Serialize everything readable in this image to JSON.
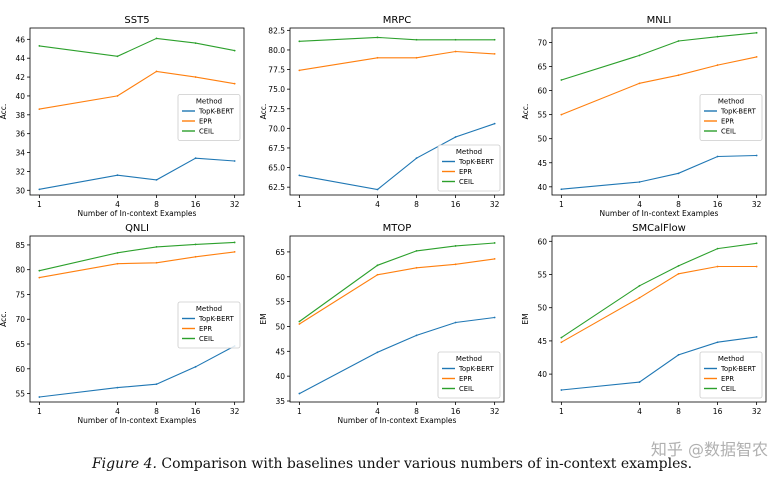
{
  "caption": {
    "label": "Figure 4.",
    "text": "Comparison with baselines under various numbers of in-context examples."
  },
  "watermark": "知乎 @数据智农",
  "colors": {
    "topk": "#1f77b4",
    "epr": "#ff7f0e",
    "ceil": "#2ca02c"
  },
  "chart_data": [
    {
      "type": "line",
      "title": "SST5",
      "xlabel": "Number of In-context Examples",
      "ylabel": "Acc.",
      "x": [
        1,
        4,
        8,
        16,
        32
      ],
      "x_scale": "log2",
      "ylim": [
        29.5,
        47.2
      ],
      "yticks": [
        30,
        32,
        34,
        36,
        38,
        40,
        42,
        44,
        46
      ],
      "legend": {
        "title": "Method",
        "position": "center-right",
        "entries": [
          "TopK-BERT",
          "EPR",
          "CEIL"
        ]
      },
      "series": [
        {
          "name": "TopK-BERT",
          "values": [
            30.1,
            31.6,
            31.1,
            33.4,
            33.1
          ]
        },
        {
          "name": "EPR",
          "values": [
            38.6,
            40.0,
            42.6,
            42.0,
            41.3
          ]
        },
        {
          "name": "CEIL",
          "values": [
            45.3,
            44.2,
            46.1,
            45.6,
            44.8
          ]
        }
      ]
    },
    {
      "type": "line",
      "title": "MRPC",
      "xlabel": "",
      "ylabel": "Acc.",
      "x": [
        1,
        4,
        8,
        16,
        32
      ],
      "x_scale": "log2",
      "ylim": [
        61.5,
        82.8
      ],
      "yticks": [
        62.5,
        65.0,
        67.5,
        70.0,
        72.5,
        75.0,
        77.5,
        80.0,
        82.5
      ],
      "legend": {
        "title": "Method",
        "position": "lower-right",
        "entries": [
          "TopK-BERT",
          "EPR",
          "CEIL"
        ]
      },
      "series": [
        {
          "name": "TopK-BERT",
          "values": [
            64.0,
            62.2,
            66.2,
            68.9,
            70.6
          ]
        },
        {
          "name": "EPR",
          "values": [
            77.4,
            79.0,
            79.0,
            79.8,
            79.5
          ]
        },
        {
          "name": "CEIL",
          "values": [
            81.1,
            81.6,
            81.3,
            81.3,
            81.3
          ]
        }
      ]
    },
    {
      "type": "line",
      "title": "MNLI",
      "xlabel": "Number of In-context Examples",
      "ylabel": "Acc.",
      "x": [
        1,
        4,
        8,
        16,
        32
      ],
      "x_scale": "log2",
      "ylim": [
        38.3,
        73.0
      ],
      "yticks": [
        40,
        45,
        50,
        55,
        60,
        65,
        70
      ],
      "legend": {
        "title": "Method",
        "position": "center-right",
        "entries": [
          "TopK-BERT",
          "EPR",
          "CEIL"
        ]
      },
      "series": [
        {
          "name": "TopK-BERT",
          "values": [
            39.5,
            41.0,
            42.8,
            46.3,
            46.5
          ]
        },
        {
          "name": "EPR",
          "values": [
            55.0,
            61.5,
            63.2,
            65.3,
            67.0
          ]
        },
        {
          "name": "CEIL",
          "values": [
            62.2,
            67.3,
            70.3,
            71.2,
            72.0
          ]
        }
      ]
    },
    {
      "type": "line",
      "title": "QNLI",
      "xlabel": "Number of In-context Examples",
      "ylabel": "Acc.",
      "x": [
        1,
        4,
        8,
        16,
        32
      ],
      "x_scale": "log2",
      "ylim": [
        53.3,
        86.8
      ],
      "yticks": [
        55,
        60,
        65,
        70,
        75,
        80,
        85
      ],
      "legend": {
        "title": "Method",
        "position": "center-right",
        "entries": [
          "TopK-BERT",
          "EPR",
          "CEIL"
        ]
      },
      "series": [
        {
          "name": "TopK-BERT",
          "values": [
            54.3,
            56.2,
            56.9,
            60.4,
            64.6
          ]
        },
        {
          "name": "EPR",
          "values": [
            78.4,
            81.2,
            81.4,
            82.6,
            83.6
          ]
        },
        {
          "name": "CEIL",
          "values": [
            79.8,
            83.4,
            84.6,
            85.1,
            85.5
          ]
        }
      ]
    },
    {
      "type": "line",
      "title": "MTOP",
      "xlabel": "Number of In-context Examples",
      "ylabel": "EM",
      "x": [
        1,
        4,
        8,
        16,
        32
      ],
      "x_scale": "log2",
      "ylim": [
        34.8,
        68.2
      ],
      "yticks": [
        35,
        40,
        45,
        50,
        55,
        60,
        65
      ],
      "legend": {
        "title": "Method",
        "position": "lower-right",
        "entries": [
          "TopK-BERT",
          "EPR",
          "CEIL"
        ]
      },
      "series": [
        {
          "name": "TopK-BERT",
          "values": [
            36.5,
            44.8,
            48.2,
            50.8,
            51.8
          ]
        },
        {
          "name": "EPR",
          "values": [
            50.5,
            60.4,
            61.8,
            62.5,
            63.6
          ]
        },
        {
          "name": "CEIL",
          "values": [
            51.0,
            62.3,
            65.2,
            66.2,
            66.8
          ]
        }
      ]
    },
    {
      "type": "line",
      "title": "SMCalFlow",
      "xlabel": "",
      "ylabel": "EM",
      "x": [
        1,
        4,
        8,
        16,
        32
      ],
      "x_scale": "log2",
      "ylim": [
        35.8,
        60.8
      ],
      "yticks": [
        40,
        45,
        50,
        55,
        60
      ],
      "legend": {
        "title": "Method",
        "position": "lower-right",
        "entries": [
          "TopK-BERT",
          "EPR",
          "CEIL"
        ]
      },
      "series": [
        {
          "name": "TopK-BERT",
          "values": [
            37.6,
            38.8,
            42.9,
            44.8,
            45.6
          ]
        },
        {
          "name": "EPR",
          "values": [
            44.8,
            51.5,
            55.1,
            56.2,
            56.2
          ]
        },
        {
          "name": "CEIL",
          "values": [
            45.5,
            53.3,
            56.3,
            58.9,
            59.7
          ]
        }
      ]
    }
  ]
}
